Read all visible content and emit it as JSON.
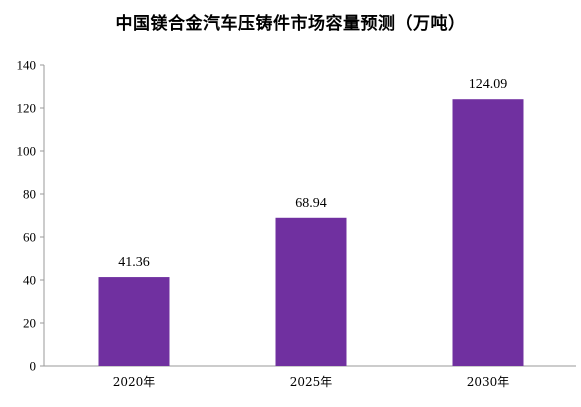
{
  "chart_data": {
    "type": "bar",
    "title": "中国镁合金汽车压铸件市场容量预测（万吨）",
    "categories": [
      "2020年",
      "2025年",
      "2030年"
    ],
    "values": [
      41.36,
      68.94,
      124.09
    ],
    "data_labels": [
      "41.36",
      "68.94",
      "124.09"
    ],
    "ylim": [
      0,
      140
    ],
    "yticks": [
      0,
      20,
      40,
      60,
      80,
      100,
      120,
      140
    ],
    "grid": false,
    "legend": "none",
    "bar_color": "#7030a0",
    "axis_color": "#9a9a9a"
  }
}
